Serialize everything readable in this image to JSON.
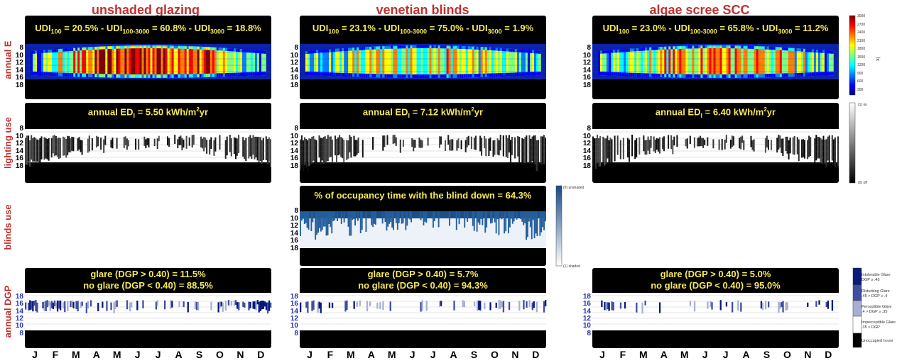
{
  "columns": [
    {
      "title": "unshaded glazing"
    },
    {
      "title": "venetian blinds"
    },
    {
      "title": "algae scree SCC"
    }
  ],
  "row_labels": {
    "annual_e": "annual E",
    "lighting_use": "lighting use",
    "blinds_use": "blinds use",
    "annual_dgp": "annual DGP"
  },
  "hour_labels": [
    "8",
    "10",
    "12",
    "14",
    "16",
    "18"
  ],
  "months": [
    "J",
    "F",
    "M",
    "A",
    "M",
    "J",
    "J",
    "A",
    "S",
    "O",
    "N",
    "D"
  ],
  "udi": [
    {
      "udi100": "20.5%",
      "udi100_3000": "60.8%",
      "udi3000": "18.8%"
    },
    {
      "udi100": "23.1%",
      "udi100_3000": "75.0%",
      "udi3000": "1.9%"
    },
    {
      "udi100": "23.0%",
      "udi100_3000": "65.8%",
      "udi3000": "11.2%"
    }
  ],
  "udi_text": {
    "prefix": "UDI",
    "sub100": "100",
    "sub100_3000": "100-3000",
    "sub3000": "3000",
    "eq": " = ",
    "sep": " - "
  },
  "edl": [
    {
      "prefix": "annual ED",
      "sub": "l",
      "value": " = 5.50 kWh/m",
      "sup": "2",
      "suffix": "yr"
    },
    {
      "prefix": "annual ED",
      "sub": "l",
      "value": " = 7.12 kWh/m",
      "sup": "2",
      "suffix": "yr"
    },
    {
      "prefix": "annual ED",
      "sub": "l",
      "value": " = 6.40 kWh/m",
      "sup": "2",
      "suffix": "yr"
    }
  ],
  "blinds_text": "% of  occupancy time with the blind down = 64.3%",
  "glare": [
    {
      "line1": "glare (DGP > 0.40) = 11.5%",
      "line2": "no glare (DGP < 0.40) = 88.5%"
    },
    {
      "line1": "glare (DGP > 0.40) = 5.7%",
      "line2": "no glare (DGP < 0.40) = 94.3%"
    },
    {
      "line1": "glare (DGP > 0.40) = 5.0%",
      "line2": "no glare (DGP < 0.40) = 95.0%"
    }
  ],
  "illuminance_colorbar": {
    "ticks": [
      "3000",
      "2700",
      "2400",
      "2100",
      "1800",
      "1500",
      "1200",
      "900",
      "600",
      "300"
    ],
    "unit": "lx"
  },
  "lighting_colorbar": {
    "top": "(1) on",
    "bottom": "(0) off"
  },
  "blinds_colorbar": {
    "top": "(0) unshaded",
    "bottom": "(1) shaded"
  },
  "glare_legend": [
    {
      "label": "Intolerable Glare\nDGP ≥ .45",
      "color": "#0a1a7a"
    },
    {
      "label": "Disturbing Glare\n.45 > DGP ≥ .4",
      "color": "#3f4fa0"
    },
    {
      "label": "Perceptible Glare\n.4 > DGP ≥ .35",
      "color": "#a8afd6"
    },
    {
      "label": "Imperceptible Glare\n.35 > DGP",
      "color": "#ffffff"
    },
    {
      "label": "Unoccupied hours",
      "color": "#000000"
    }
  ],
  "chart_data": [
    {
      "type": "heatmap",
      "title": "annual E — unshaded glazing",
      "x": "months",
      "y": "hours 8-18",
      "metrics": {
        "UDI100": 20.5,
        "UDI100-3000": 60.8,
        "UDI3000": 18.8
      },
      "zlim": [
        300,
        3000
      ]
    },
    {
      "type": "heatmap",
      "title": "annual E — venetian blinds",
      "metrics": {
        "UDI100": 23.1,
        "UDI100-3000": 75.0,
        "UDI3000": 1.9
      },
      "zlim": [
        300,
        3000
      ]
    },
    {
      "type": "heatmap",
      "title": "annual E — algae scree SCC",
      "metrics": {
        "UDI100": 23.0,
        "UDI100-3000": 65.8,
        "UDI3000": 11.2
      },
      "zlim": [
        300,
        3000
      ]
    },
    {
      "type": "heatmap",
      "title": "lighting use",
      "annual_EDl_kWh_m2yr": [
        5.5,
        7.12,
        6.4
      ]
    },
    {
      "type": "heatmap",
      "title": "blinds use — venetian blinds",
      "blind_down_pct": 64.3
    },
    {
      "type": "heatmap",
      "title": "annual DGP",
      "glare_pct": [
        11.5,
        5.7,
        5.0
      ],
      "no_glare_pct": [
        88.5,
        94.3,
        95.0
      ]
    }
  ]
}
